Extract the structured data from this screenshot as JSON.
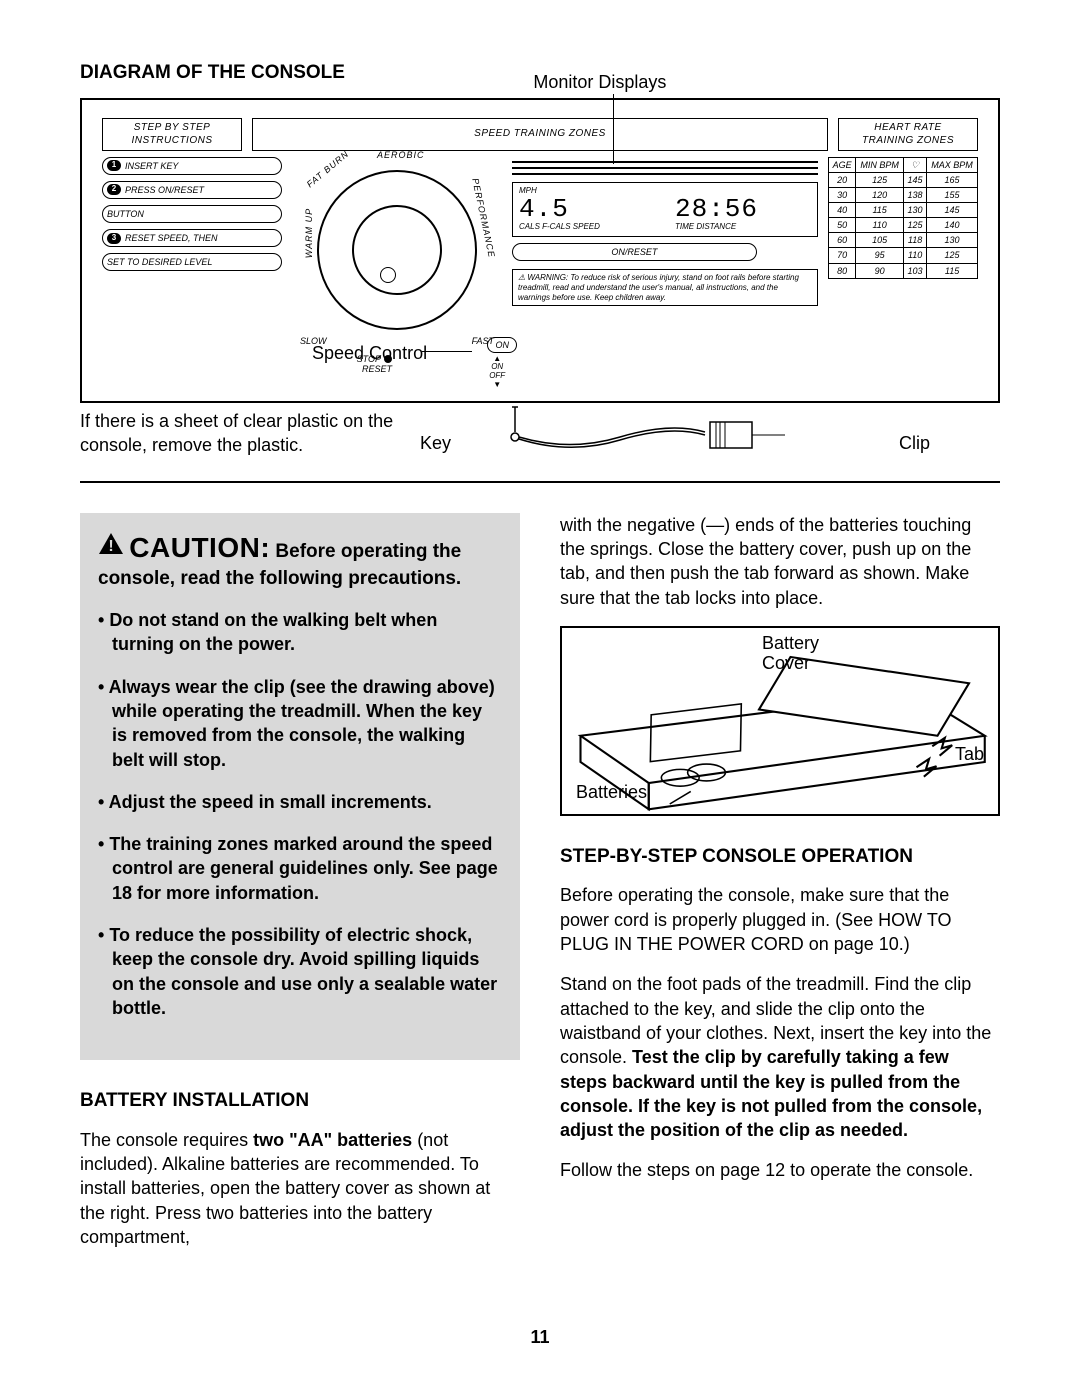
{
  "section_title": "DIAGRAM OF THE CONSOLE",
  "monitor_label": "Monitor Displays",
  "panels": {
    "step_by_step": {
      "line1": "STEP BY STEP",
      "line2": "INSTRUCTIONS"
    },
    "speed_training": "SPEED TRAINING ZONES",
    "heart_rate": {
      "line1": "HEART RATE",
      "line2": "TRAINING ZONES"
    }
  },
  "instructions": [
    {
      "num": "1",
      "text": "INSERT KEY"
    },
    {
      "num": "2",
      "text": "PRESS ON/RESET"
    },
    {
      "num": "",
      "text": "BUTTON"
    },
    {
      "num": "3",
      "text": "RESET SPEED, THEN"
    },
    {
      "num": "",
      "text": "SET TO DESIRED LEVEL"
    }
  ],
  "zones": {
    "warm_up": "WARM UP",
    "fat_burn": "FAT BURN",
    "aerobic": "AEROBIC",
    "performance": "PERFORMANCE"
  },
  "dial": {
    "slow": "SLOW",
    "fast": "FAST",
    "stop": "STOP",
    "reset": "RESET"
  },
  "displays": {
    "mph": "MPH",
    "speed_val": "4.5",
    "time_val": "28:56",
    "row_labels": "CALS  F-CALS  SPEED",
    "row_labels2": "TIME   DISTANCE",
    "on_reset": "ON/RESET",
    "warning": "⚠ WARNING: To reduce risk of serious injury, stand on foot rails before starting treadmill, read and understand the user's manual, all instructions, and the warnings before use. Keep children away."
  },
  "hr_table": {
    "headers": [
      "AGE",
      "MIN BPM",
      "♡",
      "MAX BPM"
    ],
    "rows": [
      [
        "20",
        "125",
        "145",
        "165"
      ],
      [
        "30",
        "120",
        "138",
        "155"
      ],
      [
        "40",
        "115",
        "130",
        "145"
      ],
      [
        "50",
        "110",
        "125",
        "140"
      ],
      [
        "60",
        "105",
        "118",
        "130"
      ],
      [
        "70",
        "95",
        "110",
        "125"
      ],
      [
        "80",
        "90",
        "103",
        "115"
      ]
    ]
  },
  "on_button": "ON",
  "on_off": {
    "on": "ON",
    "off": "OFF"
  },
  "speed_control_label": "Speed Control",
  "plastic_note": "If there is a sheet of clear plastic on the console, remove the plastic.",
  "key_label": "Key",
  "clip_label": "Clip",
  "caution": {
    "title_prefix": "CAUTION:",
    "title_rest": " Before operating the console, read the following precautions.",
    "items": [
      "Do not stand on the walking belt when turning on the power.",
      "Always wear the clip (see the drawing above) while operating the treadmill. When the key is removed from the console, the walking belt will stop.",
      "Adjust the speed in small increments.",
      "The training zones marked around the speed control are general guidelines only. See page 18 for more information.",
      "To reduce the possibility of electric shock, keep the console dry. Avoid spilling liquids on the console and use only a sealable water bottle."
    ]
  },
  "battery_heading": "BATTERY INSTALLATION",
  "battery_p1a": "The console requires ",
  "battery_p1b": "two \"AA\" batteries",
  "battery_p1c": " (not included). Alkaline batteries are recommended. To install batteries, open the battery cover as shown at the right. Press two batteries into the battery compartment,",
  "col2_p1": "with the negative (—) ends of the batteries touching the springs. Close the battery cover, push up on the tab, and then push the tab forward as shown. Make sure that the tab locks into place.",
  "battery_labels": {
    "cover": "Battery\nCover",
    "batteries": "Batteries",
    "tab": "Tab"
  },
  "step_heading": "STEP-BY-STEP CONSOLE OPERATION",
  "step_p1": "Before operating the console, make sure that the power cord is properly plugged in. (See HOW TO PLUG IN THE POWER CORD on page 10.)",
  "step_p2a": "Stand on the foot pads of the treadmill. Find the clip attached to the key, and slide the clip onto the waistband of your clothes. Next, insert the key into the console. ",
  "step_p2b": "Test the clip by carefully taking a few steps backward until the key is pulled from the console. If the key is not pulled from the console, adjust the position of the clip as needed.",
  "step_p3": "Follow the steps on page 12 to operate the console.",
  "page_number": "11",
  "colors": {
    "caution_bg": "#d9d9d9",
    "text": "#000000",
    "bg": "#ffffff"
  }
}
